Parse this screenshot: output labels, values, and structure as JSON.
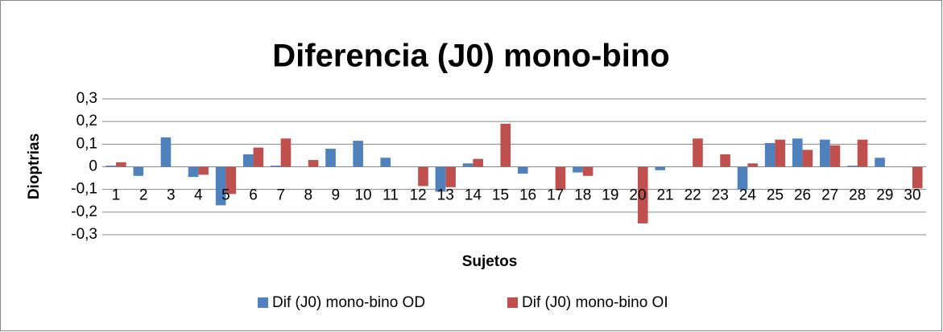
{
  "chart_data": {
    "type": "bar",
    "title": "Diferencia (J0) mono-bino",
    "x_label": "Sujetos",
    "y_label": "Dioptrias",
    "categories": [
      "1",
      "2",
      "3",
      "4",
      "5",
      "6",
      "7",
      "8",
      "9",
      "10",
      "11",
      "12",
      "13",
      "14",
      "15",
      "16",
      "17",
      "18",
      "19",
      "20",
      "21",
      "22",
      "23",
      "24",
      "25",
      "26",
      "27",
      "28",
      "29",
      "30"
    ],
    "series": [
      {
        "name": "Dif (J0) mono-bino OD",
        "color": "#4f81bd",
        "values": [
          0.005,
          -0.04,
          0.13,
          -0.045,
          -0.17,
          0.055,
          0.005,
          0,
          0.08,
          0.115,
          0.04,
          0,
          -0.11,
          0.015,
          0,
          -0.03,
          0,
          -0.025,
          0,
          0,
          -0.015,
          0,
          0,
          -0.1,
          0.105,
          0.125,
          0.12,
          0.005,
          0.04,
          0
        ]
      },
      {
        "name": "Dif (J0) mono-bino OI",
        "color": "#c0504d",
        "values": [
          0.02,
          0,
          0,
          -0.035,
          -0.12,
          0.085,
          0.125,
          0.03,
          0,
          0,
          0,
          -0.085,
          -0.09,
          0.035,
          0.19,
          0,
          -0.1,
          -0.04,
          0,
          -0.25,
          0,
          0.125,
          0.055,
          0.015,
          0.12,
          0.075,
          0.095,
          0.12,
          0,
          -0.095
        ]
      }
    ],
    "ylim": [
      -0.3,
      0.3
    ],
    "yticks": [
      {
        "value": -0.3,
        "label": "-0,3"
      },
      {
        "value": -0.2,
        "label": "-0,2"
      },
      {
        "value": -0.1,
        "label": "-0,1"
      },
      0,
      {
        "value": 0.1,
        "label": "0,1"
      },
      {
        "value": 0.2,
        "label": "0,2"
      },
      {
        "value": 0.3,
        "label": "0,3"
      }
    ],
    "grid": true,
    "legend": "bottom"
  }
}
